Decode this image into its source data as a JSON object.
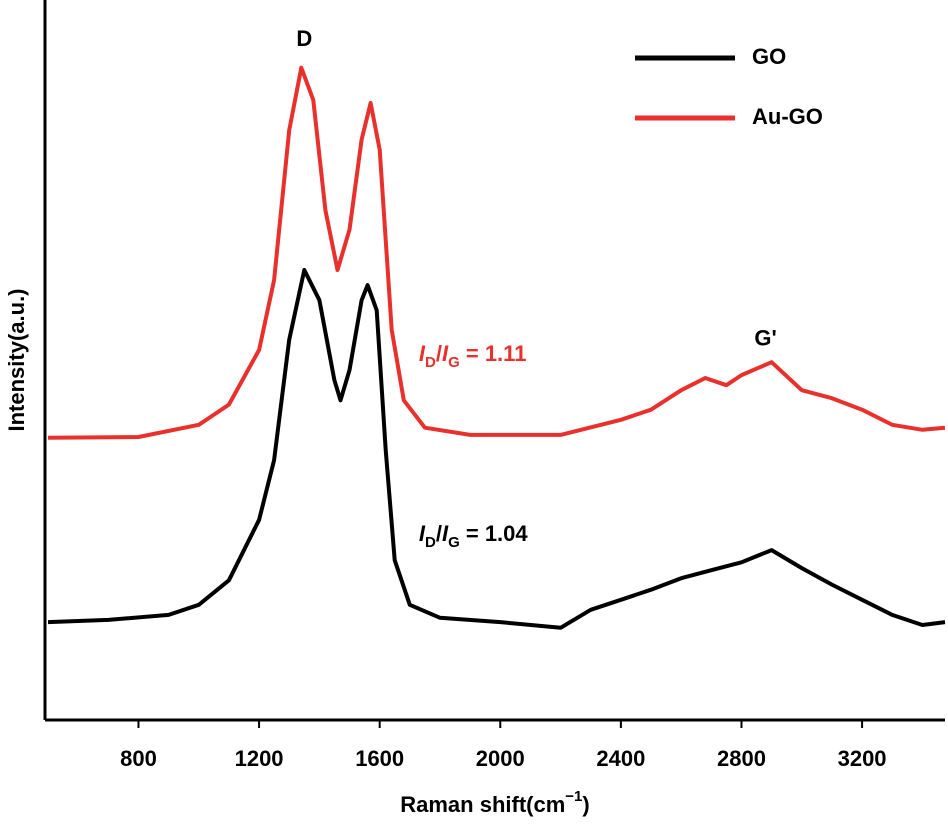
{
  "chart_data": {
    "type": "line",
    "x_label_parts": [
      "Raman shift(cm",
      "−1",
      ")"
    ],
    "y_label": "Intensity(a.u.)",
    "xlim": [
      490,
      3475
    ],
    "xticks": [
      800,
      1200,
      1600,
      2000,
      2400,
      2800,
      3200
    ],
    "ylim": [
      0,
      100
    ],
    "legend": "top-right",
    "series": [
      {
        "name": "GO",
        "color": "#000000",
        "x": [
          500,
          700,
          900,
          1000,
          1100,
          1200,
          1250,
          1300,
          1350,
          1400,
          1450,
          1470,
          1500,
          1540,
          1560,
          1590,
          1620,
          1650,
          1700,
          1800,
          2000,
          2200,
          2300,
          2400,
          2500,
          2600,
          2700,
          2800,
          2900,
          3000,
          3100,
          3200,
          3300,
          3400,
          3475
        ],
        "values": [
          13.6,
          13.9,
          14.6,
          16.0,
          19.4,
          27.8,
          36.1,
          52.8,
          62.5,
          58.3,
          47.2,
          44.4,
          48.6,
          58.3,
          60.4,
          56.9,
          37.5,
          22.2,
          16.0,
          14.2,
          13.6,
          12.8,
          15.3,
          16.7,
          18.1,
          19.7,
          20.8,
          21.9,
          23.6,
          21.1,
          18.8,
          16.7,
          14.6,
          13.2,
          13.6
        ]
      },
      {
        "name": "Au-GO",
        "color": "#e8302c",
        "x": [
          500,
          800,
          1000,
          1100,
          1200,
          1250,
          1300,
          1340,
          1380,
          1420,
          1460,
          1500,
          1540,
          1570,
          1600,
          1640,
          1680,
          1750,
          1900,
          2200,
          2400,
          2500,
          2600,
          2680,
          2750,
          2800,
          2900,
          3000,
          3100,
          3200,
          3300,
          3400,
          3475
        ],
        "values": [
          39.2,
          39.3,
          41.0,
          43.8,
          51.4,
          61.1,
          81.9,
          90.6,
          86.1,
          70.8,
          62.5,
          68.1,
          80.6,
          85.7,
          79.2,
          54.2,
          44.4,
          40.6,
          39.6,
          39.6,
          41.7,
          43.1,
          45.8,
          47.5,
          46.5,
          47.9,
          49.7,
          45.8,
          44.7,
          43.1,
          41.0,
          40.3,
          40.6
        ]
      }
    ],
    "annotations": [
      {
        "text": "D",
        "x": 1350,
        "y": 94.4
      },
      {
        "text": "G'",
        "x": 2880,
        "y": 52.8
      }
    ],
    "ratio_labels": [
      {
        "parts": [
          "I",
          "D",
          "/",
          "I",
          "G",
          " = 1.11"
        ],
        "color": "#e8302c",
        "x": 1730,
        "y": 50.7
      },
      {
        "parts": [
          "I",
          "D",
          "/",
          "I",
          "G",
          " = 1.04"
        ],
        "color": "#000000",
        "x": 1730,
        "y": 25.7
      }
    ]
  }
}
